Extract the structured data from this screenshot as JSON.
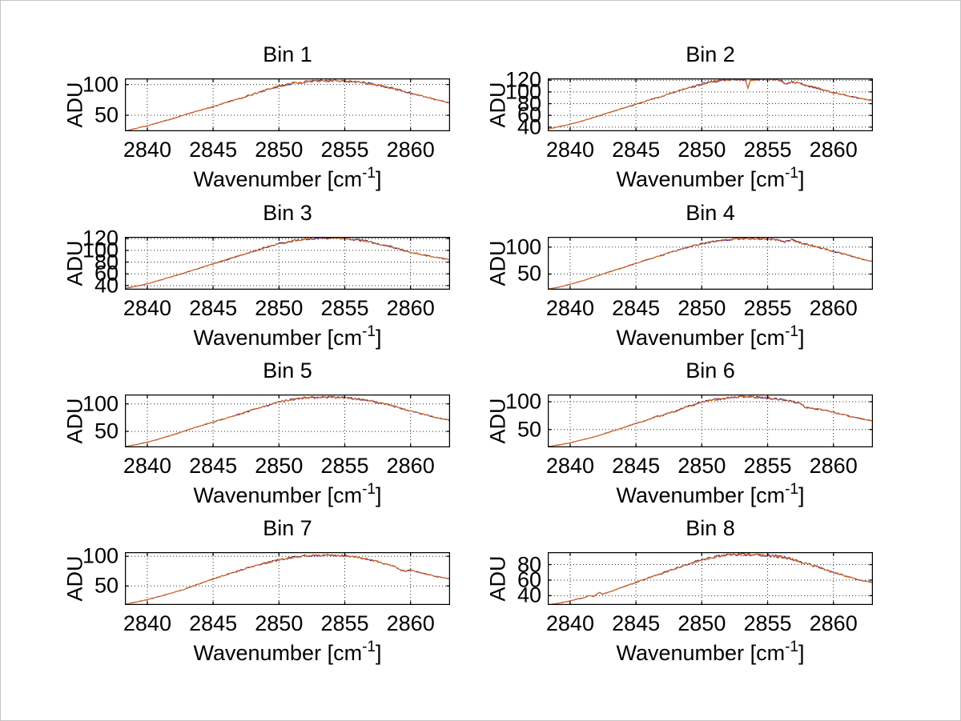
{
  "figure": {
    "background": "#ffffff",
    "border_color": "#c4c4c4",
    "grid_color": "#2a2a2a",
    "axis_color": "#000000"
  },
  "labels": {
    "ylabel": "ADU",
    "xlabel_prefix": "Wavenumber [cm",
    "xlabel_sup": "-1",
    "xlabel_suffix": "]"
  },
  "chart_data": [
    {
      "type": "line",
      "title": "Bin 1",
      "xlim": [
        2838.3,
        2863.0
      ],
      "ylim": [
        24,
        110
      ],
      "xticks": [
        2840,
        2845,
        2850,
        2855,
        2860
      ],
      "yticks": [
        50,
        100
      ],
      "grid": true,
      "noise": 1.8,
      "series": [
        {
          "name": "trace-dark",
          "color": "#472277",
          "seed": 101
        },
        {
          "name": "trace-orange",
          "color": "#dc6a1c",
          "seed": 102
        }
      ],
      "points": [
        [
          2838.3,
          24
        ],
        [
          2839,
          28
        ],
        [
          2840,
          33
        ],
        [
          2841,
          39
        ],
        [
          2842,
          45
        ],
        [
          2843,
          52
        ],
        [
          2844,
          58
        ],
        [
          2845,
          64
        ],
        [
          2846,
          71
        ],
        [
          2847,
          77
        ],
        [
          2848,
          84
        ],
        [
          2849,
          91
        ],
        [
          2850,
          97
        ],
        [
          2851,
          102
        ],
        [
          2852,
          104
        ],
        [
          2853,
          106
        ],
        [
          2854,
          107
        ],
        [
          2855,
          106
        ],
        [
          2856,
          104
        ],
        [
          2857,
          101
        ],
        [
          2858,
          97
        ],
        [
          2859,
          92
        ],
        [
          2860,
          86
        ],
        [
          2861,
          81
        ],
        [
          2862,
          75
        ],
        [
          2863,
          70
        ]
      ]
    },
    {
      "type": "line",
      "title": "Bin 2",
      "xlim": [
        2838.3,
        2863.0
      ],
      "ylim": [
        33,
        123
      ],
      "xticks": [
        2840,
        2845,
        2850,
        2855,
        2860
      ],
      "yticks": [
        40,
        60,
        80,
        100,
        120
      ],
      "grid": true,
      "noise": 1.6,
      "series": [
        {
          "name": "trace-dark",
          "color": "#472277",
          "seed": 201
        },
        {
          "name": "trace-orange",
          "color": "#dc6a1c",
          "seed": 202
        }
      ],
      "points": [
        [
          2838.3,
          37
        ],
        [
          2839,
          40
        ],
        [
          2840,
          45
        ],
        [
          2841,
          51
        ],
        [
          2842,
          58
        ],
        [
          2843,
          65
        ],
        [
          2844,
          72
        ],
        [
          2845,
          79
        ],
        [
          2846,
          86
        ],
        [
          2847,
          93
        ],
        [
          2848,
          100
        ],
        [
          2849,
          107
        ],
        [
          2850,
          113
        ],
        [
          2850.7,
          117
        ],
        [
          2851.5,
          120
        ],
        [
          2852.5,
          121
        ],
        [
          2853.3,
          121
        ],
        [
          2853.5,
          105
        ],
        [
          2853.7,
          120
        ],
        [
          2854.5,
          122
        ],
        [
          2855.3,
          122
        ],
        [
          2856,
          119
        ],
        [
          2856.4,
          113
        ],
        [
          2856.8,
          117
        ],
        [
          2857.5,
          114
        ],
        [
          2858,
          111
        ],
        [
          2859,
          105
        ],
        [
          2860,
          99
        ],
        [
          2861,
          94
        ],
        [
          2862,
          89
        ],
        [
          2863,
          85
        ]
      ]
    },
    {
      "type": "line",
      "title": "Bin 3",
      "xlim": [
        2838.3,
        2863.0
      ],
      "ylim": [
        33,
        123
      ],
      "xticks": [
        2840,
        2845,
        2850,
        2855,
        2860
      ],
      "yticks": [
        40,
        60,
        80,
        100,
        120
      ],
      "grid": true,
      "noise": 1.6,
      "series": [
        {
          "name": "trace-dark",
          "color": "#472277",
          "seed": 301
        },
        {
          "name": "trace-orange",
          "color": "#dc6a1c",
          "seed": 302
        }
      ],
      "points": [
        [
          2838.3,
          35
        ],
        [
          2840,
          43
        ],
        [
          2842,
          56
        ],
        [
          2844,
          70
        ],
        [
          2846,
          84
        ],
        [
          2847,
          91
        ],
        [
          2848,
          98
        ],
        [
          2849,
          105
        ],
        [
          2850,
          111
        ],
        [
          2851,
          116
        ],
        [
          2852,
          119
        ],
        [
          2853,
          121
        ],
        [
          2854,
          121
        ],
        [
          2855,
          120
        ],
        [
          2856,
          118
        ],
        [
          2857,
          114
        ],
        [
          2858,
          109
        ],
        [
          2859,
          103
        ],
        [
          2860,
          97
        ],
        [
          2861,
          92
        ],
        [
          2862,
          88
        ],
        [
          2863,
          84
        ]
      ]
    },
    {
      "type": "line",
      "title": "Bin 4",
      "xlim": [
        2838.3,
        2863.0
      ],
      "ylim": [
        21,
        119
      ],
      "xticks": [
        2840,
        2845,
        2850,
        2855,
        2860
      ],
      "yticks": [
        50,
        100
      ],
      "grid": true,
      "noise": 1.7,
      "series": [
        {
          "name": "trace-dark",
          "color": "#472277",
          "seed": 401
        },
        {
          "name": "trace-orange",
          "color": "#dc6a1c",
          "seed": 402
        }
      ],
      "points": [
        [
          2838.3,
          22
        ],
        [
          2839,
          25
        ],
        [
          2840,
          31
        ],
        [
          2841,
          38
        ],
        [
          2842,
          46
        ],
        [
          2843,
          54
        ],
        [
          2844,
          62
        ],
        [
          2845,
          70
        ],
        [
          2846,
          78
        ],
        [
          2847,
          85
        ],
        [
          2848,
          93
        ],
        [
          2849,
          100
        ],
        [
          2850,
          106
        ],
        [
          2851,
          111
        ],
        [
          2852,
          114
        ],
        [
          2853,
          115
        ],
        [
          2854,
          116
        ],
        [
          2855,
          115
        ],
        [
          2855.8,
          113
        ],
        [
          2856.3,
          110
        ],
        [
          2856.8,
          114
        ],
        [
          2857.3,
          109
        ],
        [
          2858,
          105
        ],
        [
          2859,
          99
        ],
        [
          2860,
          92
        ],
        [
          2861,
          86
        ],
        [
          2862,
          79
        ],
        [
          2863,
          73
        ]
      ]
    },
    {
      "type": "line",
      "title": "Bin 5",
      "xlim": [
        2838.3,
        2863.0
      ],
      "ylim": [
        21,
        117
      ],
      "xticks": [
        2840,
        2845,
        2850,
        2855,
        2860
      ],
      "yticks": [
        50,
        100
      ],
      "grid": true,
      "noise": 1.7,
      "series": [
        {
          "name": "trace-dark",
          "color": "#472277",
          "seed": 501
        },
        {
          "name": "trace-orange",
          "color": "#dc6a1c",
          "seed": 502
        }
      ],
      "points": [
        [
          2838.3,
          22
        ],
        [
          2840,
          30
        ],
        [
          2842,
          44
        ],
        [
          2843,
          52
        ],
        [
          2844,
          60
        ],
        [
          2845,
          67
        ],
        [
          2846,
          74
        ],
        [
          2847,
          81
        ],
        [
          2848,
          89
        ],
        [
          2849,
          96
        ],
        [
          2850,
          103
        ],
        [
          2851,
          108
        ],
        [
          2852,
          111
        ],
        [
          2853,
          112
        ],
        [
          2854,
          112
        ],
        [
          2855,
          111
        ],
        [
          2856,
          109
        ],
        [
          2857,
          105
        ],
        [
          2858,
          100
        ],
        [
          2859,
          94
        ],
        [
          2860,
          87
        ],
        [
          2861,
          81
        ],
        [
          2862,
          75
        ],
        [
          2863,
          70
        ]
      ]
    },
    {
      "type": "line",
      "title": "Bin 6",
      "xlim": [
        2838.3,
        2863.0
      ],
      "ylim": [
        18,
        113
      ],
      "xticks": [
        2840,
        2845,
        2850,
        2855,
        2860
      ],
      "yticks": [
        50,
        100
      ],
      "grid": true,
      "noise": 1.7,
      "series": [
        {
          "name": "trace-dark",
          "color": "#472277",
          "seed": 601
        },
        {
          "name": "trace-orange",
          "color": "#dc6a1c",
          "seed": 602
        }
      ],
      "points": [
        [
          2838.3,
          19
        ],
        [
          2840,
          26
        ],
        [
          2842,
          38
        ],
        [
          2844,
          53
        ],
        [
          2845,
          61
        ],
        [
          2846,
          68
        ],
        [
          2846.5,
          73
        ],
        [
          2847,
          75
        ],
        [
          2847.5,
          80
        ],
        [
          2848,
          83
        ],
        [
          2848.5,
          88
        ],
        [
          2849,
          92
        ],
        [
          2850,
          99
        ],
        [
          2851,
          104
        ],
        [
          2852,
          107
        ],
        [
          2853,
          109
        ],
        [
          2854,
          108
        ],
        [
          2855,
          107
        ],
        [
          2856,
          104
        ],
        [
          2857,
          100
        ],
        [
          2857.5,
          97
        ],
        [
          2857.9,
          89
        ],
        [
          2858.3,
          88
        ],
        [
          2859,
          86
        ],
        [
          2860,
          81
        ],
        [
          2861,
          75
        ],
        [
          2862,
          70
        ],
        [
          2863,
          65
        ]
      ]
    },
    {
      "type": "line",
      "title": "Bin 7",
      "xlim": [
        2838.3,
        2863.0
      ],
      "ylim": [
        18,
        107
      ],
      "xticks": [
        2840,
        2845,
        2850,
        2855,
        2860
      ],
      "yticks": [
        50,
        100
      ],
      "grid": true,
      "noise": 1.5,
      "series": [
        {
          "name": "trace-dark",
          "color": "#472277",
          "seed": 701
        },
        {
          "name": "trace-orange",
          "color": "#dc6a1c",
          "seed": 702
        }
      ],
      "points": [
        [
          2838.3,
          19
        ],
        [
          2840,
          27
        ],
        [
          2842,
          39
        ],
        [
          2843,
          46
        ],
        [
          2844,
          54
        ],
        [
          2845,
          62
        ],
        [
          2846,
          69
        ],
        [
          2847,
          76
        ],
        [
          2848,
          83
        ],
        [
          2849,
          89
        ],
        [
          2850,
          94
        ],
        [
          2851,
          98
        ],
        [
          2852,
          101
        ],
        [
          2853,
          102
        ],
        [
          2854,
          102
        ],
        [
          2855,
          101
        ],
        [
          2856,
          98
        ],
        [
          2857,
          94
        ],
        [
          2858,
          88
        ],
        [
          2858.8,
          83
        ],
        [
          2859.2,
          77
        ],
        [
          2859.6,
          75
        ],
        [
          2860,
          77
        ],
        [
          2860.5,
          74
        ],
        [
          2861,
          71
        ],
        [
          2862,
          66
        ],
        [
          2863,
          62
        ]
      ]
    },
    {
      "type": "line",
      "title": "Bin 8",
      "xlim": [
        2838.3,
        2863.0
      ],
      "ylim": [
        28,
        96
      ],
      "xticks": [
        2840,
        2845,
        2850,
        2855,
        2860
      ],
      "yticks": [
        40,
        60,
        80
      ],
      "grid": true,
      "noise": 1.6,
      "series": [
        {
          "name": "trace-dark",
          "color": "#472277",
          "seed": 801
        },
        {
          "name": "trace-orange",
          "color": "#dc6a1c",
          "seed": 802
        }
      ],
      "points": [
        [
          2838.3,
          28
        ],
        [
          2839,
          30
        ],
        [
          2840,
          33
        ],
        [
          2840.6,
          36
        ],
        [
          2841,
          37
        ],
        [
          2841.4,
          40
        ],
        [
          2841.8,
          39
        ],
        [
          2842.2,
          44
        ],
        [
          2842.5,
          42
        ],
        [
          2843,
          45
        ],
        [
          2844,
          51
        ],
        [
          2845,
          57
        ],
        [
          2846,
          63
        ],
        [
          2847,
          69
        ],
        [
          2848,
          75
        ],
        [
          2849,
          81
        ],
        [
          2850,
          86
        ],
        [
          2851,
          90
        ],
        [
          2852,
          92
        ],
        [
          2853,
          93
        ],
        [
          2854,
          93
        ],
        [
          2855,
          92
        ],
        [
          2856,
          90
        ],
        [
          2856.7,
          88
        ],
        [
          2857.3,
          84
        ],
        [
          2858,
          81
        ],
        [
          2859,
          76
        ],
        [
          2860,
          70
        ],
        [
          2861,
          65
        ],
        [
          2862,
          60
        ],
        [
          2863,
          57
        ]
      ]
    }
  ]
}
